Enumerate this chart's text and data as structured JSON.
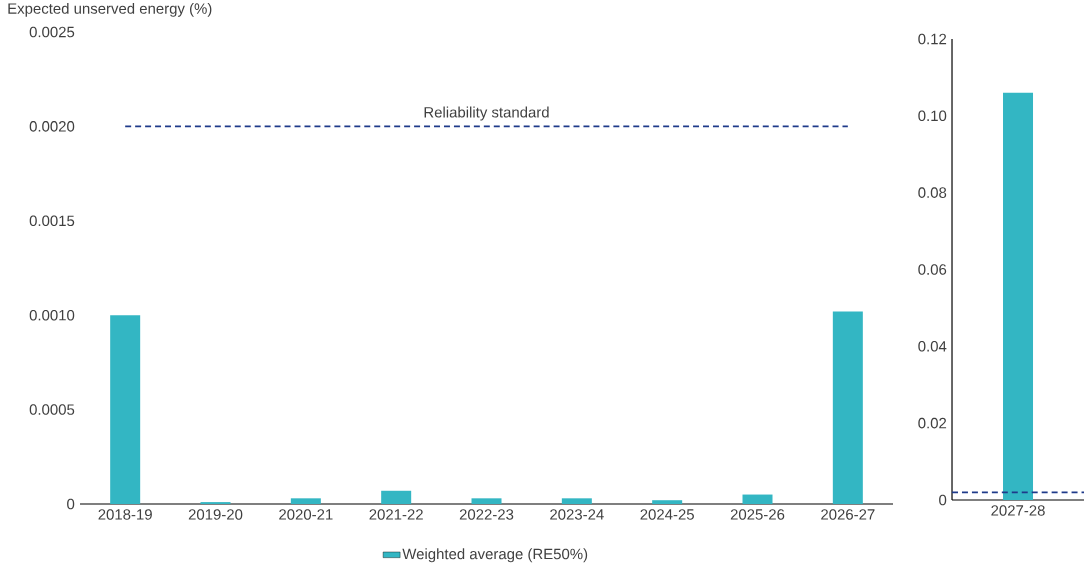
{
  "chart_data": [
    {
      "type": "bar",
      "ylabel": "Expected unserved energy (%)",
      "categories": [
        "2018-19",
        "2019-20",
        "2020-21",
        "2021-22",
        "2022-23",
        "2023-24",
        "2024-25",
        "2025-26",
        "2026-27"
      ],
      "series": [
        {
          "name": "Weighted average (RE50%)",
          "color": "#33b6c3",
          "values": [
            0.001,
            1e-05,
            3e-05,
            7e-05,
            3e-05,
            3e-05,
            2e-05,
            5e-05,
            0.00102
          ]
        }
      ],
      "ylim": [
        0,
        0.0025
      ],
      "yticks": [
        0,
        0.0005,
        {
          "value": 0.001,
          "label": "0.0010"
        },
        0.0015,
        {
          "value": 0.002,
          "label": "0.0020"
        },
        0.0025
      ],
      "ref_lines": [
        {
          "axis": "y",
          "value": 0.002,
          "label": "Reliability standard",
          "color": "#1f3a8a",
          "line_style": "dashed"
        }
      ],
      "legend": "bottom"
    },
    {
      "type": "bar",
      "categories": [
        "2027-28"
      ],
      "series": [
        {
          "color": "#33b6c3",
          "values": [
            0.106
          ]
        }
      ],
      "ylim": [
        0,
        0.12
      ],
      "yticks": [
        0,
        0.02,
        0.04,
        0.06,
        0.08,
        {
          "value": 0.1,
          "label": "0.10"
        },
        0.12
      ],
      "ref_lines": [
        {
          "axis": "y",
          "value": 0.002,
          "color": "#1f3a8a",
          "line_style": "dashed"
        }
      ]
    }
  ]
}
